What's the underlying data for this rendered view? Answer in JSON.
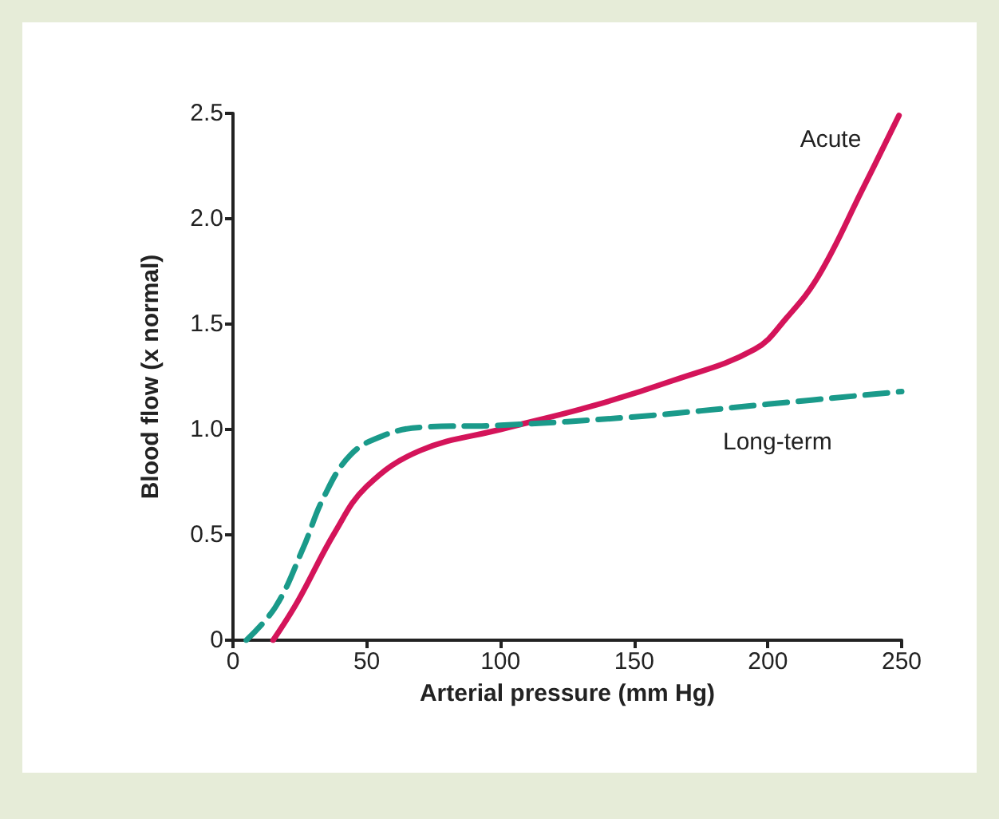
{
  "chart_data": {
    "type": "line",
    "xlabel": "Arterial pressure (mm Hg)",
    "ylabel": "Blood flow (x normal)",
    "xlim": [
      0,
      250
    ],
    "xticks": [
      0,
      50,
      100,
      150,
      200,
      250
    ],
    "ylim": [
      0,
      2.5
    ],
    "yticks": [
      0,
      0.5,
      {
        "value": 1,
        "label": "1.0"
      },
      1.5,
      {
        "value": 2,
        "label": "2.0"
      },
      2.5
    ],
    "grid": false,
    "legend": false,
    "marker": "none",
    "series": [
      {
        "name": "Acute",
        "color": "#d4145a",
        "line_style": "solid",
        "x": [
          15,
          24,
          38,
          50,
          70,
          100,
          134,
          164,
          195,
          207,
          219,
          235,
          249
        ],
        "values": [
          0,
          0.18,
          0.51,
          0.73,
          0.9,
          1.0,
          1.11,
          1.23,
          1.38,
          1.53,
          1.73,
          2.13,
          2.49
        ]
      },
      {
        "name": "Long-term",
        "color": "#1a9a8a",
        "line_style": "dashed",
        "x": [
          5,
          16,
          26,
          34,
          44,
          56,
          70,
          100,
          150,
          200,
          250
        ],
        "values": [
          0,
          0.16,
          0.43,
          0.68,
          0.88,
          0.97,
          1.01,
          1.02,
          1.06,
          1.12,
          1.18
        ]
      }
    ]
  }
}
